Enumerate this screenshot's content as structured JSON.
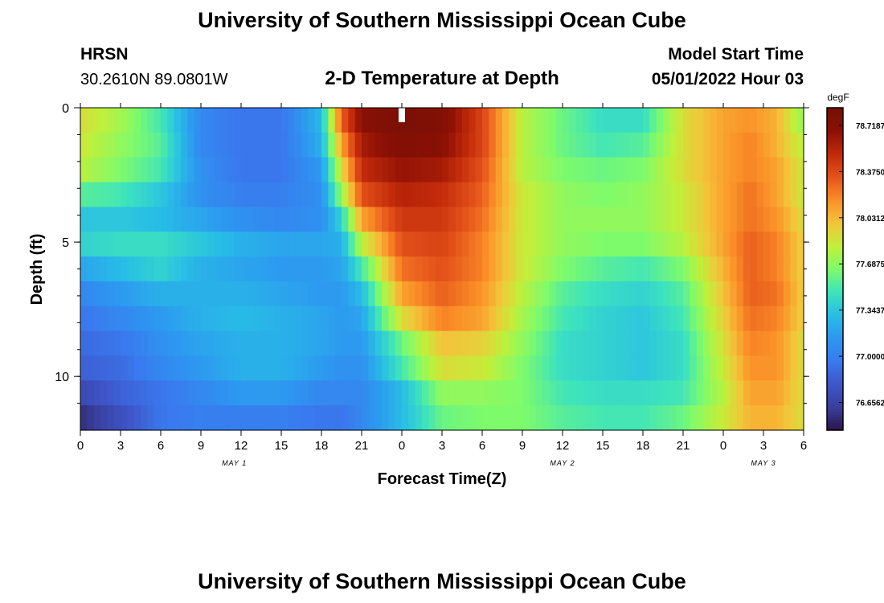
{
  "header": {
    "title": "University of Southern Mississippi Ocean Cube",
    "station_id": "HRSN",
    "station_coords": "30.2610N  89.0801W",
    "plot_title": "2-D Temperature at Depth",
    "model_start_label": "Model Start Time",
    "model_start_value": "05/01/2022 Hour 03"
  },
  "footer": {
    "title": "University of Southern Mississippi Ocean Cube"
  },
  "chart_data": {
    "type": "heatmap",
    "title": "2-D Temperature at Depth",
    "xlabel": "Forecast Time(Z)",
    "ylabel": "Depth (ft)",
    "x_hours": [
      0,
      54
    ],
    "x_tick_labels": [
      "0",
      "3",
      "6",
      "9",
      "12",
      "15",
      "18",
      "21",
      "0",
      "3",
      "6",
      "9",
      "12",
      "15",
      "18",
      "21",
      "0",
      "3",
      "6"
    ],
    "day_labels": [
      {
        "label": "MAY 1",
        "hour": 11.5
      },
      {
        "label": "MAY 2",
        "hour": 36
      },
      {
        "label": "MAY 3",
        "hour": 51
      }
    ],
    "y_ticks": [
      0,
      5,
      10
    ],
    "ylim": [
      0,
      12
    ],
    "y_inverted": true,
    "colorbar": {
      "unit": "degF",
      "vmin": 76.45,
      "vmax": 78.85,
      "tick_labels": [
        "78.7187",
        "78.3750",
        "78.0312",
        "77.6875",
        "77.3437",
        "77.0000",
        "76.6562"
      ],
      "tick_values": [
        78.7187,
        78.375,
        78.0312,
        77.6875,
        77.3437,
        77.0,
        76.6562
      ],
      "colors": [
        "#2b1449",
        "#3a3e9e",
        "#3e55c8",
        "#3a79ef",
        "#2d97f0",
        "#28bde6",
        "#3de3bd",
        "#7efb6b",
        "#c0f03a",
        "#f3c53a",
        "#fb8f28",
        "#e5531b",
        "#c22a0a",
        "#8c1005",
        "#741005"
      ]
    },
    "depths_ft": [
      0,
      1,
      2,
      3,
      4,
      5,
      6,
      7,
      8,
      9,
      10,
      11,
      12
    ],
    "anchor_hours": [
      0,
      3,
      6,
      9,
      12,
      15,
      18,
      19.5,
      21,
      24,
      27,
      30,
      33,
      36,
      39,
      42,
      45,
      48,
      50,
      52,
      54
    ],
    "values": [
      [
        77.9,
        77.75,
        77.5,
        77.05,
        76.95,
        76.95,
        77.3,
        78.3,
        78.7,
        78.8,
        78.75,
        78.4,
        77.8,
        77.6,
        77.45,
        77.45,
        77.9,
        78.1,
        78.15,
        78.05,
        77.7
      ],
      [
        77.85,
        77.7,
        77.55,
        77.05,
        76.95,
        76.95,
        77.25,
        78.1,
        78.6,
        78.75,
        78.7,
        78.4,
        77.8,
        77.6,
        77.5,
        77.55,
        77.9,
        78.1,
        78.2,
        78.05,
        77.8
      ],
      [
        77.8,
        77.65,
        77.5,
        77.1,
        76.95,
        76.95,
        77.15,
        77.9,
        78.5,
        78.65,
        78.6,
        78.35,
        77.8,
        77.65,
        77.6,
        77.65,
        77.9,
        78.1,
        78.2,
        78.1,
        77.85
      ],
      [
        77.55,
        77.5,
        77.35,
        77.1,
        77.0,
        77.0,
        77.1,
        77.7,
        78.35,
        78.55,
        78.5,
        78.3,
        77.85,
        77.7,
        77.65,
        77.7,
        77.85,
        78.1,
        78.25,
        78.1,
        77.85
      ],
      [
        77.35,
        77.35,
        77.3,
        77.2,
        77.1,
        77.05,
        77.1,
        77.4,
        78.1,
        78.45,
        78.45,
        78.25,
        77.85,
        77.7,
        77.7,
        77.7,
        77.85,
        78.1,
        78.25,
        78.15,
        77.9
      ],
      [
        77.4,
        77.45,
        77.45,
        77.35,
        77.25,
        77.2,
        77.2,
        77.25,
        77.8,
        78.35,
        78.4,
        78.2,
        77.85,
        77.7,
        77.65,
        77.65,
        77.8,
        78.1,
        78.3,
        78.2,
        77.95
      ],
      [
        77.2,
        77.3,
        77.4,
        77.25,
        77.2,
        77.15,
        77.15,
        77.2,
        77.5,
        78.25,
        78.35,
        78.2,
        77.85,
        77.65,
        77.55,
        77.5,
        77.65,
        78.05,
        78.3,
        78.2,
        77.95
      ],
      [
        77.05,
        77.15,
        77.25,
        77.25,
        77.25,
        77.2,
        77.15,
        77.15,
        77.3,
        78.1,
        78.3,
        78.15,
        77.8,
        77.55,
        77.45,
        77.4,
        77.55,
        78.0,
        78.3,
        78.25,
        77.95
      ],
      [
        76.95,
        77.05,
        77.15,
        77.25,
        77.3,
        77.25,
        77.2,
        77.15,
        77.2,
        77.9,
        78.2,
        78.1,
        77.75,
        77.5,
        77.4,
        77.35,
        77.5,
        77.95,
        78.25,
        78.2,
        77.95
      ],
      [
        76.9,
        76.95,
        77.1,
        77.2,
        77.25,
        77.25,
        77.2,
        77.15,
        77.15,
        77.6,
        78.0,
        77.95,
        77.7,
        77.45,
        77.4,
        77.35,
        77.45,
        77.9,
        78.2,
        78.15,
        77.9
      ],
      [
        76.85,
        76.9,
        77.05,
        77.15,
        77.25,
        77.25,
        77.15,
        77.1,
        77.1,
        77.5,
        77.9,
        77.85,
        77.65,
        77.45,
        77.4,
        77.35,
        77.45,
        77.85,
        78.15,
        78.15,
        77.9
      ],
      [
        76.7,
        76.85,
        76.95,
        77.05,
        77.15,
        77.15,
        77.05,
        77.05,
        77.05,
        77.3,
        77.7,
        77.7,
        77.65,
        77.5,
        77.45,
        77.45,
        77.5,
        77.8,
        78.1,
        78.1,
        77.9
      ],
      [
        76.55,
        76.75,
        76.95,
        77.0,
        77.0,
        77.0,
        76.95,
        76.95,
        77.05,
        77.3,
        77.6,
        77.65,
        77.65,
        77.55,
        77.5,
        77.5,
        77.6,
        77.85,
        78.05,
        78.05,
        77.9
      ]
    ],
    "current_time_marker_hour": 24
  }
}
